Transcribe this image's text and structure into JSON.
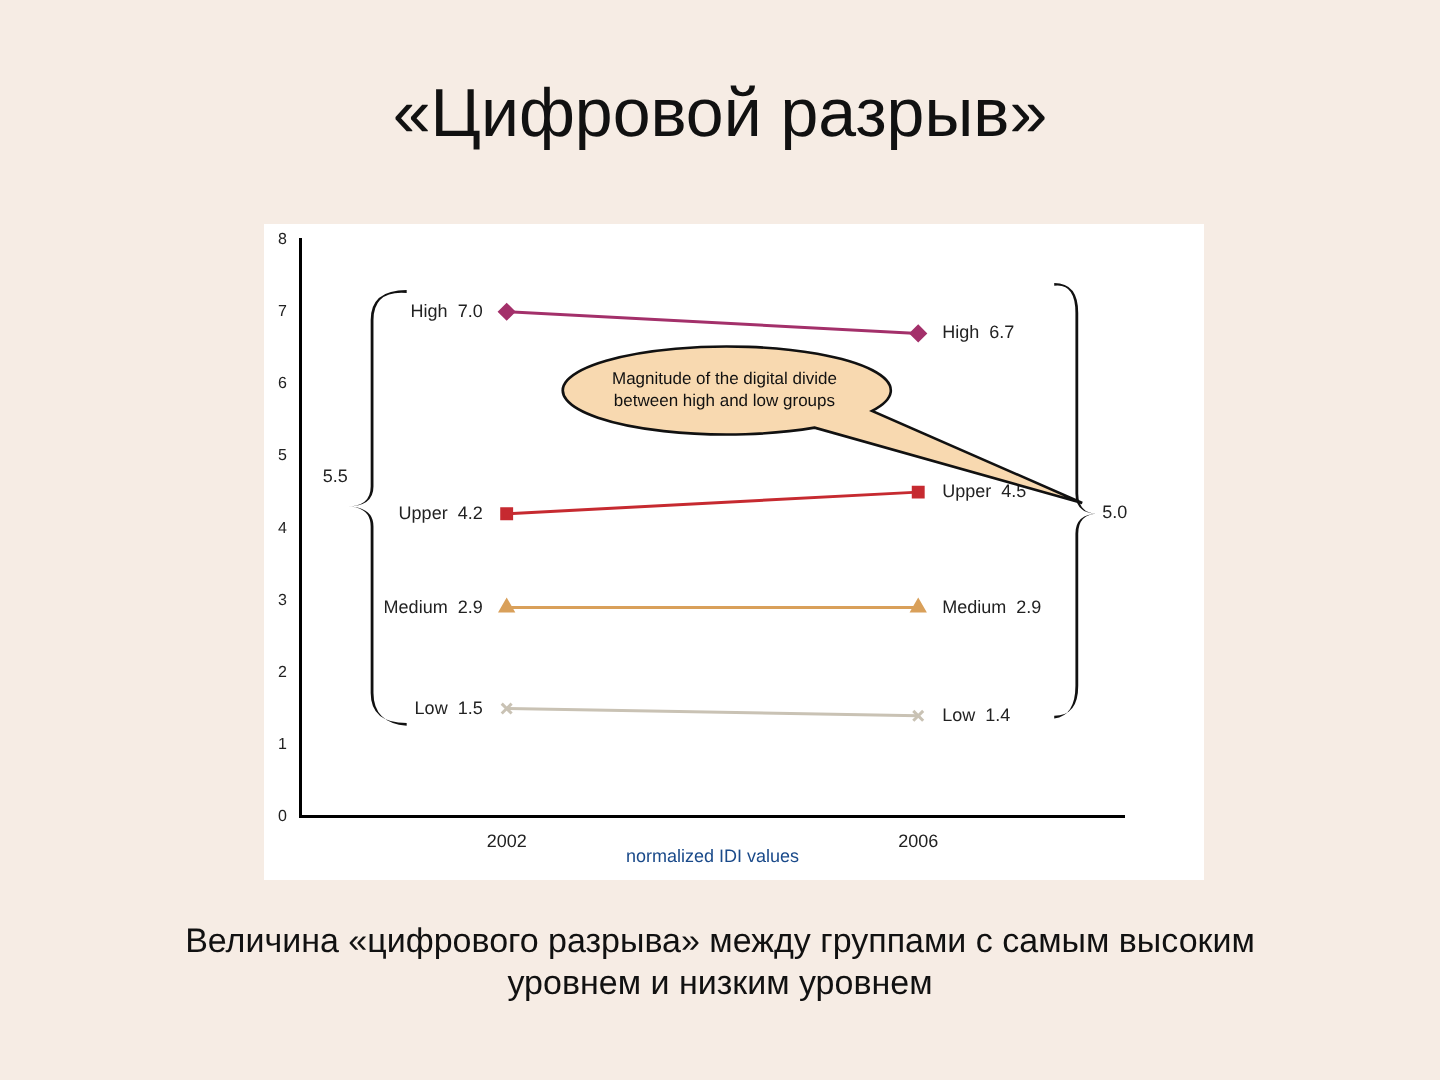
{
  "chart_data": {
    "type": "line",
    "title": "«Цифровой разрыв»",
    "xlabel": "normalized IDI values",
    "categories": [
      "2002",
      "2006"
    ],
    "series": [
      {
        "name": "High",
        "color": "#a3306a",
        "values": [
          7.0,
          6.7
        ],
        "value_labels": [
          "7.0",
          "6.7"
        ],
        "marker": "diamond"
      },
      {
        "name": "Upper",
        "color": "#c62a30",
        "values": [
          4.2,
          4.5
        ],
        "value_labels": [
          "4.2",
          "4.5"
        ],
        "marker": "square"
      },
      {
        "name": "Medium",
        "color": "#d9a05a",
        "values": [
          2.9,
          2.9
        ],
        "value_labels": [
          "2.9",
          "2.9"
        ],
        "marker": "triangle"
      },
      {
        "name": "Low",
        "color": "#c9c2b4",
        "values": [
          1.5,
          1.4
        ],
        "value_labels": [
          "1.5",
          "1.4"
        ],
        "marker": "cross"
      }
    ],
    "ylim": [
      0,
      8
    ],
    "yticks": [
      0,
      1,
      2,
      3,
      4,
      5,
      6,
      7,
      8
    ],
    "grid": false,
    "legend": false,
    "annotations": [
      "5.5",
      "5.0",
      "Magnitude of the digital divide between high and low groups",
      "Величина «цифрового разрыва» между группами с самым высоким уровнем и низким уровнем"
    ]
  }
}
